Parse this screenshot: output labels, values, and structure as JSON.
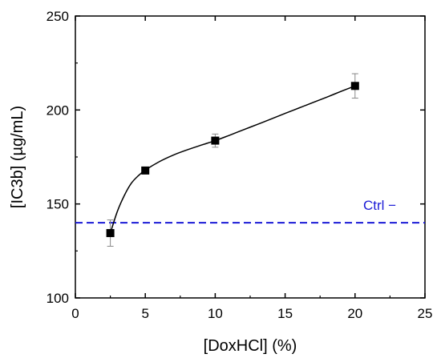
{
  "chart_data": {
    "type": "scatter",
    "xlabel": "[DoxHCl] (%)",
    "ylabel": "[IC3b] (µg/mL)",
    "xlim": [
      0,
      25
    ],
    "ylim": [
      100,
      250
    ],
    "xticks": [
      0,
      5,
      10,
      15,
      20,
      25
    ],
    "yticks": [
      100,
      150,
      200,
      250
    ],
    "series": [
      {
        "x": [
          2.5,
          5,
          10,
          20
        ],
        "y": [
          134.5,
          167.8,
          183.7,
          212.8
        ],
        "error": [
          7,
          1.5,
          3.5,
          6.5
        ],
        "marker": "square",
        "color": "#000000"
      }
    ],
    "fit_line": {
      "x": [
        2.5,
        3,
        3.5,
        4,
        4.5,
        5,
        6,
        7,
        8,
        9,
        10,
        11,
        12,
        13,
        14,
        15,
        16,
        17,
        18,
        19,
        20
      ],
      "y": [
        134.5,
        146,
        154.5,
        161,
        165,
        168,
        172.5,
        176,
        178.8,
        181.3,
        183.7,
        186.5,
        189.4,
        192.3,
        195.2,
        198.2,
        201.1,
        204,
        206.9,
        209.9,
        212.8
      ],
      "color": "#000000"
    },
    "reference_line": {
      "y": 140,
      "label": "Ctrl −",
      "color": "#1a1ad6",
      "style": "dashed"
    },
    "grid": false
  }
}
